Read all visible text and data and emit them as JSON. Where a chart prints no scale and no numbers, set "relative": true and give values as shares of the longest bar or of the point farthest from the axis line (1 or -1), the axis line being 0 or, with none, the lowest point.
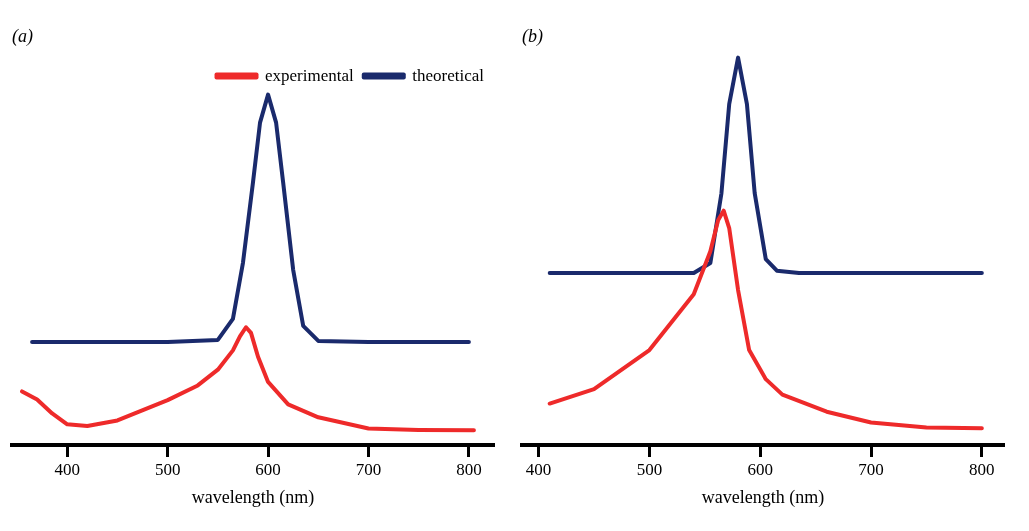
{
  "chart_data": [
    {
      "type": "line",
      "title": "(a)",
      "xlabel": "wavelength (nm)",
      "relative": true,
      "xlim": [
        345,
        825
      ],
      "xticks": [
        400,
        500,
        600,
        700,
        800
      ],
      "legend": "top right",
      "tick_labels": "x",
      "grid": false,
      "marker": "none",
      "series": [
        {
          "name": "experimental",
          "color": "#ee2a2a",
          "x": [
            355,
            370,
            385,
            400,
            420,
            450,
            500,
            530,
            550,
            565,
            572,
            578,
            583,
            590,
            600,
            620,
            650,
            700,
            750,
            805
          ],
          "values": [
            0.153,
            0.13,
            0.09,
            0.059,
            0.054,
            0.07,
            0.128,
            0.17,
            0.215,
            0.27,
            0.31,
            0.336,
            0.32,
            0.252,
            0.18,
            0.116,
            0.079,
            0.047,
            0.043,
            0.042
          ]
        },
        {
          "name": "theoretical",
          "color": "#1a2a6c",
          "x": [
            365,
            500,
            550,
            565,
            575,
            585,
            592,
            600,
            608,
            615,
            625,
            635,
            650,
            700,
            800
          ],
          "values": [
            0.294,
            0.294,
            0.3,
            0.36,
            0.52,
            0.75,
            0.92,
            1,
            0.92,
            0.75,
            0.5,
            0.34,
            0.297,
            0.294,
            0.294
          ]
        }
      ]
    },
    {
      "type": "line",
      "title": "(b)",
      "xlabel": "wavelength (nm)",
      "relative": true,
      "xlim": [
        385,
        820
      ],
      "xticks": [
        400,
        500,
        600,
        700,
        800
      ],
      "tick_labels": "x",
      "grid": false,
      "marker": "none",
      "series": [
        {
          "color": "#ee2a2a",
          "x": [
            410,
            450,
            500,
            540,
            555,
            562,
            567,
            572,
            580,
            590,
            605,
            620,
            660,
            700,
            750,
            800
          ],
          "values": [
            0.107,
            0.144,
            0.245,
            0.389,
            0.5,
            0.58,
            0.605,
            0.56,
            0.4,
            0.245,
            0.17,
            0.13,
            0.086,
            0.058,
            0.045,
            0.043
          ]
        },
        {
          "color": "#1a2a6c",
          "x": [
            410,
            540,
            555,
            565,
            572,
            580,
            588,
            595,
            605,
            615,
            635,
            800
          ],
          "values": [
            0.444,
            0.444,
            0.47,
            0.65,
            0.88,
            1,
            0.88,
            0.65,
            0.48,
            0.45,
            0.444,
            0.444
          ]
        }
      ]
    }
  ]
}
